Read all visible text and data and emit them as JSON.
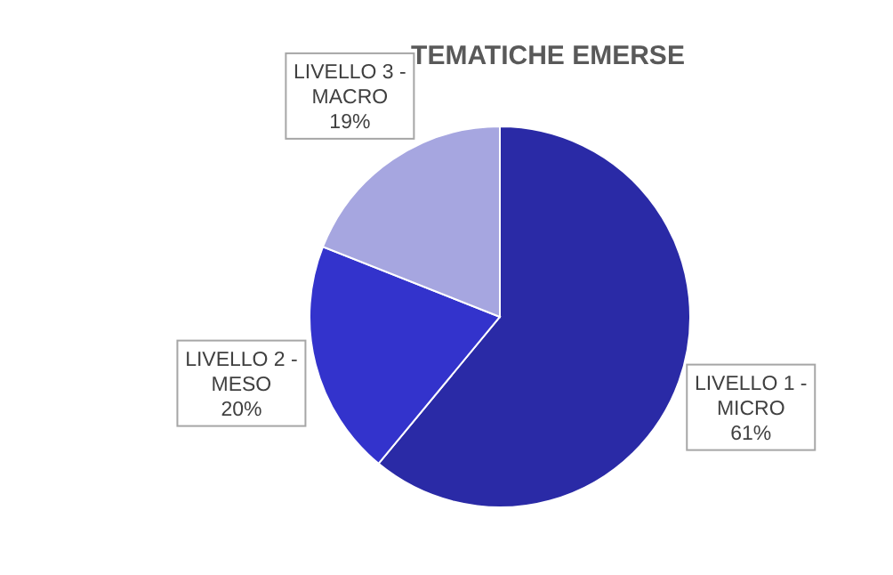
{
  "chart_data": {
    "type": "pie",
    "title": "TEMATICHE EMERSE",
    "categories": [
      "LIVELLO 1 - MICRO",
      "LIVELLO 2 - MESO",
      "LIVELLO 3 - MACRO"
    ],
    "values": [
      61,
      20,
      19
    ],
    "colors": [
      "#2a2aa6",
      "#3333cc",
      "#a6a6e0"
    ],
    "value_labels": [
      "61%",
      "20%",
      "19%"
    ]
  }
}
